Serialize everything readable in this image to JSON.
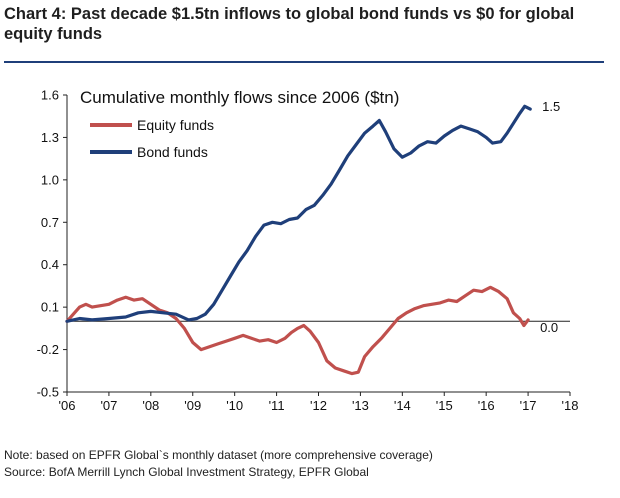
{
  "chart_data": {
    "type": "line",
    "title": "Chart 4: Past decade $1.5tn inflows to global bond funds vs $0 for global equity funds",
    "subtitle": "Cumulative monthly flows since 2006 ($tn)",
    "x_ticks": [
      "'06",
      "'07",
      "'08",
      "'09",
      "'10",
      "'11",
      "'12",
      "'13",
      "'14",
      "'15",
      "'16",
      "'17",
      "'18"
    ],
    "y_ticks": [
      "1.6",
      "1.3",
      "1.0",
      "0.7",
      "0.4",
      "0.1",
      "-0.2",
      "-0.5"
    ],
    "xlim": [
      2006,
      2018
    ],
    "ylim": [
      -0.5,
      1.6
    ],
    "zero_line": 0.0,
    "legend_position": "top-left",
    "series": [
      {
        "name": "Equity funds",
        "color": "#c0504d",
        "end_label": "0.0",
        "points": [
          [
            2006.0,
            0.0
          ],
          [
            2006.15,
            0.05
          ],
          [
            2006.3,
            0.1
          ],
          [
            2006.45,
            0.12
          ],
          [
            2006.6,
            0.1
          ],
          [
            2006.8,
            0.11
          ],
          [
            2007.0,
            0.12
          ],
          [
            2007.2,
            0.15
          ],
          [
            2007.4,
            0.17
          ],
          [
            2007.6,
            0.15
          ],
          [
            2007.8,
            0.16
          ],
          [
            2008.0,
            0.12
          ],
          [
            2008.2,
            0.08
          ],
          [
            2008.4,
            0.06
          ],
          [
            2008.6,
            0.02
          ],
          [
            2008.8,
            -0.05
          ],
          [
            2009.0,
            -0.15
          ],
          [
            2009.2,
            -0.2
          ],
          [
            2009.4,
            -0.18
          ],
          [
            2009.6,
            -0.16
          ],
          [
            2009.8,
            -0.14
          ],
          [
            2010.0,
            -0.12
          ],
          [
            2010.2,
            -0.1
          ],
          [
            2010.4,
            -0.12
          ],
          [
            2010.6,
            -0.14
          ],
          [
            2010.8,
            -0.13
          ],
          [
            2011.0,
            -0.15
          ],
          [
            2011.2,
            -0.12
          ],
          [
            2011.35,
            -0.08
          ],
          [
            2011.5,
            -0.05
          ],
          [
            2011.65,
            -0.03
          ],
          [
            2011.8,
            -0.07
          ],
          [
            2012.0,
            -0.15
          ],
          [
            2012.2,
            -0.28
          ],
          [
            2012.4,
            -0.33
          ],
          [
            2012.6,
            -0.35
          ],
          [
            2012.8,
            -0.37
          ],
          [
            2012.95,
            -0.36
          ],
          [
            2013.1,
            -0.25
          ],
          [
            2013.3,
            -0.18
          ],
          [
            2013.5,
            -0.12
          ],
          [
            2013.7,
            -0.05
          ],
          [
            2013.9,
            0.02
          ],
          [
            2014.1,
            0.06
          ],
          [
            2014.3,
            0.09
          ],
          [
            2014.5,
            0.11
          ],
          [
            2014.7,
            0.12
          ],
          [
            2014.9,
            0.13
          ],
          [
            2015.1,
            0.15
          ],
          [
            2015.3,
            0.14
          ],
          [
            2015.5,
            0.18
          ],
          [
            2015.7,
            0.22
          ],
          [
            2015.9,
            0.21
          ],
          [
            2016.1,
            0.24
          ],
          [
            2016.3,
            0.21
          ],
          [
            2016.5,
            0.16
          ],
          [
            2016.65,
            0.06
          ],
          [
            2016.8,
            0.02
          ],
          [
            2016.9,
            -0.03
          ],
          [
            2017.0,
            0.01
          ]
        ]
      },
      {
        "name": "Bond funds",
        "color": "#1f3f7a",
        "end_label": "1.5",
        "points": [
          [
            2006.0,
            0.0
          ],
          [
            2006.3,
            0.02
          ],
          [
            2006.6,
            0.01
          ],
          [
            2007.0,
            0.02
          ],
          [
            2007.4,
            0.03
          ],
          [
            2007.7,
            0.06
          ],
          [
            2008.0,
            0.07
          ],
          [
            2008.3,
            0.06
          ],
          [
            2008.6,
            0.05
          ],
          [
            2008.9,
            0.01
          ],
          [
            2009.1,
            0.02
          ],
          [
            2009.3,
            0.05
          ],
          [
            2009.5,
            0.12
          ],
          [
            2009.7,
            0.22
          ],
          [
            2009.9,
            0.32
          ],
          [
            2010.1,
            0.42
          ],
          [
            2010.3,
            0.5
          ],
          [
            2010.5,
            0.6
          ],
          [
            2010.7,
            0.68
          ],
          [
            2010.9,
            0.7
          ],
          [
            2011.1,
            0.69
          ],
          [
            2011.3,
            0.72
          ],
          [
            2011.5,
            0.73
          ],
          [
            2011.7,
            0.79
          ],
          [
            2011.9,
            0.82
          ],
          [
            2012.1,
            0.89
          ],
          [
            2012.3,
            0.97
          ],
          [
            2012.5,
            1.07
          ],
          [
            2012.7,
            1.17
          ],
          [
            2012.9,
            1.25
          ],
          [
            2013.1,
            1.33
          ],
          [
            2013.3,
            1.38
          ],
          [
            2013.45,
            1.42
          ],
          [
            2013.6,
            1.34
          ],
          [
            2013.8,
            1.22
          ],
          [
            2014.0,
            1.16
          ],
          [
            2014.2,
            1.19
          ],
          [
            2014.4,
            1.24
          ],
          [
            2014.6,
            1.27
          ],
          [
            2014.8,
            1.26
          ],
          [
            2015.0,
            1.31
          ],
          [
            2015.2,
            1.35
          ],
          [
            2015.4,
            1.38
          ],
          [
            2015.6,
            1.36
          ],
          [
            2015.8,
            1.34
          ],
          [
            2016.0,
            1.3
          ],
          [
            2016.15,
            1.26
          ],
          [
            2016.35,
            1.27
          ],
          [
            2016.5,
            1.33
          ],
          [
            2016.65,
            1.4
          ],
          [
            2016.8,
            1.47
          ],
          [
            2016.92,
            1.52
          ],
          [
            2017.05,
            1.5
          ]
        ]
      }
    ]
  },
  "notes": {
    "note": "Note: based on EPFR Global`s monthly dataset (more comprehensive coverage)",
    "source": "Source: BofA Merrill Lynch Global Investment Strategy, EPFR Global"
  }
}
